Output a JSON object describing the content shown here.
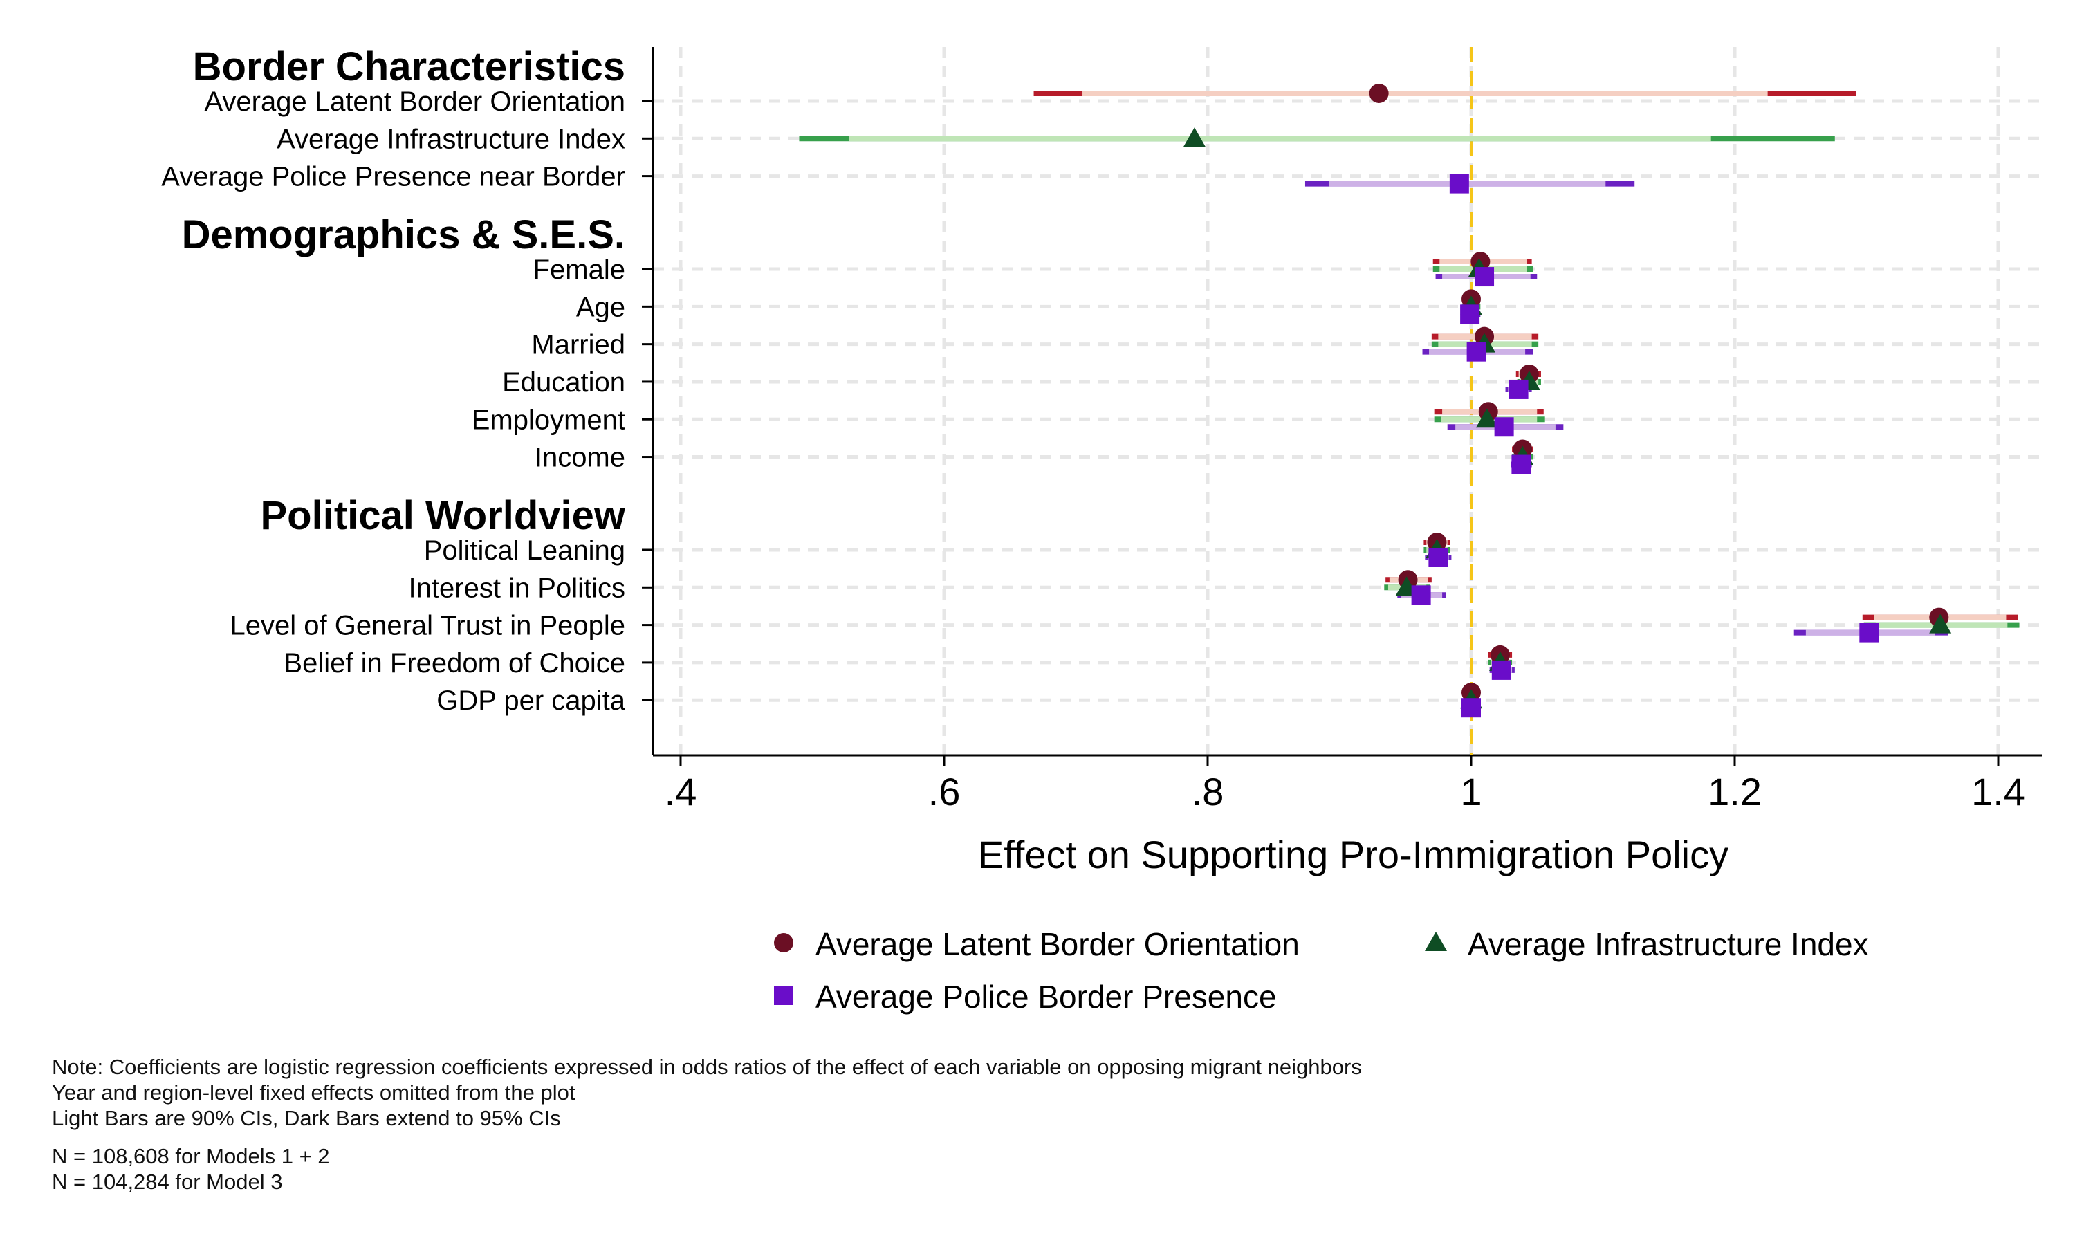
{
  "colors": {
    "latent": "#6b0f24",
    "infra": "#0f4d24",
    "police": "#6a0dc9",
    "latent_light": "#f5cfc2",
    "latent_dark": "#b71c2a",
    "infra_light": "#bfe5b6",
    "infra_dark": "#37a04c",
    "police_light": "#cdb1e6",
    "police_dark": "#6b22c2",
    "refline": "#f5c518",
    "grid": "#e6e6e6"
  },
  "chart_data": {
    "type": "coefficient-plot",
    "xlabel": "Effect on Supporting Pro-Immigration Policy",
    "xticks": [
      ".4",
      ".6",
      ".8",
      "1",
      "1.2",
      "1.4"
    ],
    "xtick_values": [
      0.4,
      0.6,
      0.8,
      1.0,
      1.2,
      1.4
    ],
    "xlim": [
      0.38,
      1.44
    ],
    "reference_line": 1.0,
    "grid": true,
    "legend_position": "bottom",
    "series": [
      {
        "name": "Average Latent Border Orientation",
        "key": "latent",
        "marker": "circle"
      },
      {
        "name": "Average Infrastructure Index",
        "key": "infra",
        "marker": "triangle"
      },
      {
        "name": "Average Police Border Presence",
        "key": "police",
        "marker": "square"
      }
    ],
    "groups": [
      {
        "title": "Border Characteristics",
        "rows": [
          {
            "label": "Average Latent Border Orientation",
            "est": {
              "latent": [
                0.93,
                0.705,
                1.225,
                0.668,
                1.292
              ]
            }
          },
          {
            "label": "Average Infrastructure Index",
            "est": {
              "infra": [
                0.79,
                0.528,
                1.182,
                0.49,
                1.276
              ]
            }
          },
          {
            "label": "Average Police Presence near Border",
            "est": {
              "police": [
                0.991,
                0.892,
                1.102,
                0.874,
                1.124
              ]
            }
          }
        ]
      },
      {
        "title": "Demographics & S.E.S.",
        "rows": [
          {
            "label": "Female",
            "est": {
              "latent": [
                1.007,
                0.976,
                1.042,
                0.971,
                1.046
              ],
              "infra": [
                1.006,
                0.976,
                1.042,
                0.971,
                1.047
              ],
              "police": [
                1.01,
                0.978,
                1.045,
                0.973,
                1.05
              ]
            }
          },
          {
            "label": "Age",
            "est": {
              "latent": [
                1.0,
                0.995,
                1.005,
                0.993,
                1.007
              ],
              "infra": [
                1.0,
                0.995,
                1.005,
                0.993,
                1.007
              ],
              "police": [
                0.999,
                0.994,
                1.005,
                0.992,
                1.007
              ]
            }
          },
          {
            "label": "Married",
            "est": {
              "latent": [
                1.01,
                0.975,
                1.046,
                0.97,
                1.051
              ],
              "infra": [
                1.01,
                0.975,
                1.046,
                0.97,
                1.051
              ],
              "police": [
                1.004,
                0.968,
                1.041,
                0.963,
                1.047
              ]
            }
          },
          {
            "label": "Education",
            "est": {
              "latent": [
                1.044,
                1.036,
                1.05,
                1.034,
                1.053
              ],
              "infra": [
                1.044,
                1.037,
                1.051,
                1.035,
                1.053
              ],
              "police": [
                1.036,
                1.028,
                1.044,
                1.026,
                1.046
              ]
            }
          },
          {
            "label": "Employment",
            "est": {
              "latent": [
                1.013,
                0.978,
                1.05,
                0.972,
                1.055
              ],
              "infra": [
                1.012,
                0.977,
                1.05,
                0.972,
                1.056
              ],
              "police": [
                1.025,
                0.988,
                1.064,
                0.982,
                1.07
              ]
            }
          },
          {
            "label": "Income",
            "est": {
              "latent": [
                1.039,
                1.033,
                1.045,
                1.031,
                1.047
              ],
              "infra": [
                1.039,
                1.033,
                1.045,
                1.031,
                1.047
              ],
              "police": [
                1.038,
                1.032,
                1.044,
                1.03,
                1.046
              ]
            }
          }
        ]
      },
      {
        "title": "Political Worldview",
        "rows": [
          {
            "label": "Political Leaning",
            "est": {
              "latent": [
                0.974,
                0.966,
                0.982,
                0.964,
                0.984
              ],
              "infra": [
                0.974,
                0.966,
                0.982,
                0.964,
                0.984
              ],
              "police": [
                0.975,
                0.967,
                0.983,
                0.965,
                0.985
              ]
            }
          },
          {
            "label": "Interest in Politics",
            "est": {
              "latent": [
                0.952,
                0.938,
                0.967,
                0.935,
                0.97
              ],
              "infra": [
                0.951,
                0.937,
                0.966,
                0.934,
                0.969
              ],
              "police": [
                0.962,
                0.947,
                0.978,
                0.944,
                0.981
              ]
            }
          },
          {
            "label": "Level of General Trust in People",
            "est": {
              "latent": [
                1.355,
                1.306,
                1.406,
                1.297,
                1.415
              ],
              "infra": [
                1.356,
                1.307,
                1.407,
                1.298,
                1.416
              ],
              "police": [
                1.302,
                1.254,
                1.352,
                1.245,
                1.362
              ]
            }
          },
          {
            "label": "Belief in Freedom of Choice",
            "est": {
              "latent": [
                1.022,
                1.015,
                1.029,
                1.013,
                1.031
              ],
              "infra": [
                1.022,
                1.015,
                1.029,
                1.013,
                1.031
              ],
              "police": [
                1.023,
                1.016,
                1.031,
                1.014,
                1.033
              ]
            }
          },
          {
            "label": "GDP per capita",
            "est": {
              "latent": [
                1.0,
                0.998,
                1.002,
                0.997,
                1.003
              ],
              "infra": [
                1.0,
                0.998,
                1.002,
                0.997,
                1.003
              ],
              "police": [
                1.0,
                0.998,
                1.002,
                0.997,
                1.003
              ]
            }
          }
        ]
      }
    ]
  },
  "notes": [
    "Note: Coefficients are logistic regression coefficients expressed in odds ratios of the effect of each variable on opposing migrant neighbors",
    "Year and region-level fixed effects omitted from the plot",
    "Light Bars are 90% CIs, Dark Bars extend to 95% CIs"
  ],
  "sample_sizes": [
    "N = 108,608 for Models 1 + 2",
    "N = 104,284 for Model 3"
  ]
}
